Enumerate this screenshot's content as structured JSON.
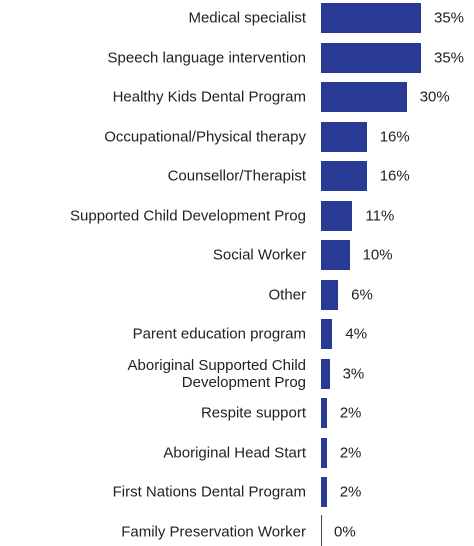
{
  "chart_data": {
    "type": "bar",
    "orientation": "horizontal",
    "color": "#283a93",
    "categories": [
      "Medical specialist",
      "Speech language intervention",
      "Healthy Kids Dental Program",
      "Occupational/Physical therapy",
      "Counsellor/Therapist",
      "Supported Child Development Prog",
      "Social Worker",
      "Other",
      "Parent education program",
      "Aboriginal Supported Child\nDevelopment Prog",
      "Respite support",
      "Aboriginal Head Start",
      "First Nations Dental Program",
      "Family Preservation Worker"
    ],
    "values": [
      35,
      35,
      30,
      16,
      16,
      11,
      10,
      6,
      4,
      3,
      2,
      2,
      2,
      0
    ],
    "value_labels": [
      "35%",
      "35%",
      "30%",
      "16%",
      "16%",
      "11%",
      "10%",
      "6%",
      "4%",
      "3%",
      "2%",
      "2%",
      "2%",
      "0%"
    ]
  }
}
